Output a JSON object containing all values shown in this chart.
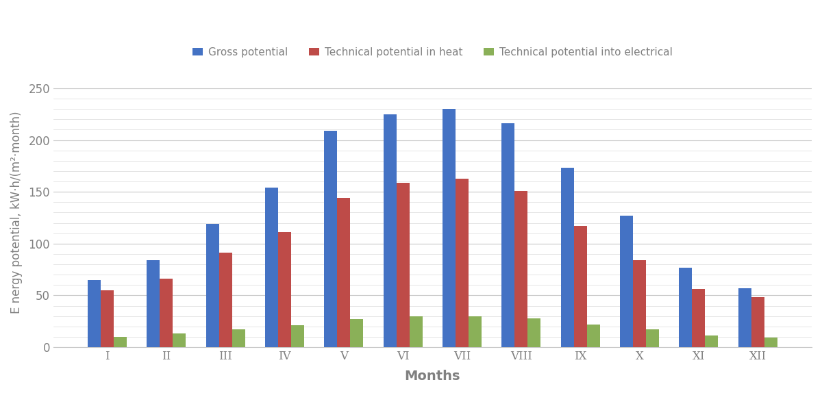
{
  "months": [
    "I",
    "II",
    "III",
    "IV",
    "V",
    "VI",
    "VII",
    "VIII",
    "IX",
    "X",
    "XI",
    "XII"
  ],
  "gross_potential": [
    65,
    84,
    119,
    154,
    209,
    225,
    230,
    216,
    173,
    127,
    77,
    57
  ],
  "tech_heat": [
    55,
    66,
    91,
    111,
    144,
    159,
    163,
    151,
    117,
    84,
    56,
    48
  ],
  "tech_electrical": [
    10,
    13,
    17,
    21,
    27,
    30,
    30,
    28,
    22,
    17,
    11,
    9
  ],
  "bar_color_gross": "#4472C4",
  "bar_color_heat": "#BE4B48",
  "bar_color_electrical": "#8AB058",
  "legend_labels": [
    "Gross potential",
    "Technical potential in heat",
    "Technical potential into electrical"
  ],
  "xlabel": "Months",
  "ylabel": "E nergy potential, kW·h/(m²·month)",
  "ylim": [
    0,
    260
  ],
  "yticks": [
    0,
    50,
    100,
    150,
    200,
    250
  ],
  "minor_yticks": [
    10,
    20,
    30,
    40,
    60,
    70,
    80,
    90,
    110,
    120,
    130,
    140,
    160,
    170,
    180,
    190,
    210,
    220,
    230,
    240
  ],
  "background_color": "#FFFFFF",
  "plot_bg_color": "#FFFFFF",
  "major_grid_color": "#C8C8C8",
  "minor_grid_color": "#E0E0E0",
  "bar_width": 0.22,
  "axis_fontsize": 13,
  "tick_fontsize": 12,
  "legend_fontsize": 11,
  "tick_color": "#808080",
  "label_color": "#808080"
}
